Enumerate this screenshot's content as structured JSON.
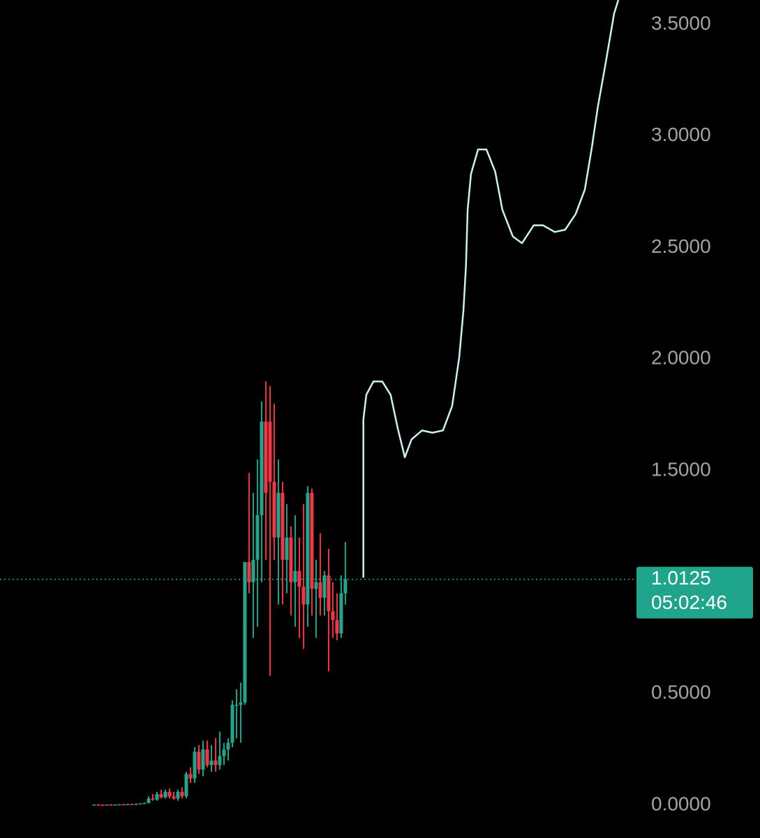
{
  "chart_data": {
    "type": "candlestick",
    "up_color": "#22a58c",
    "down_color": "#f23645",
    "line_color": "#c9f2f4",
    "price_line_color": "#1fa58b",
    "ylim": [
      -0.147,
      3.61
    ],
    "xlim": [
      -22.5,
      129.2
    ],
    "yticks": [
      {
        "value": 0,
        "label": "0.0000"
      },
      {
        "value": 0.5,
        "label": "0.5000"
      },
      {
        "value": 1.5,
        "label": "1.5000"
      },
      {
        "value": 2,
        "label": "2.0000"
      },
      {
        "value": 2.5,
        "label": "2.5000"
      },
      {
        "value": 3,
        "label": "3.0000"
      },
      {
        "value": 3.5,
        "label": "3.5000"
      }
    ],
    "open": [
      0.002,
      0.003,
      0.002,
      0.001,
      0.003,
      0.002,
      0.003,
      0.004,
      0.003,
      0.005,
      0.004,
      0.006,
      0.008,
      0.01,
      0.03,
      0.025,
      0.05,
      0.035,
      0.06,
      0.04,
      0.03,
      0.06,
      0.04,
      0.14,
      0.12,
      0.24,
      0.16,
      0.25,
      0.18,
      0.2,
      0.18,
      0.22,
      0.25,
      0.28,
      0.45,
      0.45,
      0.46,
      1.09,
      1.0,
      1.1,
      1.3,
      1.72,
      1.72,
      1.45,
      1.2,
      1.4,
      1.1,
      1.2,
      1.0,
      1.05,
      0.98,
      0.9,
      1.4,
      0.97,
      1.0,
      0.93,
      1.03,
      0.87,
      0.83,
      0.77,
      0.95
    ],
    "high": [
      0.004,
      0.005,
      0.004,
      0.004,
      0.005,
      0.004,
      0.005,
      0.006,
      0.006,
      0.007,
      0.008,
      0.009,
      0.012,
      0.04,
      0.05,
      0.06,
      0.07,
      0.07,
      0.075,
      0.06,
      0.07,
      0.08,
      0.15,
      0.17,
      0.26,
      0.27,
      0.29,
      0.29,
      0.27,
      0.3,
      0.33,
      0.28,
      0.3,
      0.47,
      0.52,
      0.55,
      1.09,
      1.49,
      1.4,
      1.55,
      1.81,
      1.9,
      1.88,
      1.8,
      1.55,
      1.45,
      1.35,
      1.25,
      1.3,
      1.2,
      1.35,
      1.43,
      1.42,
      1.1,
      1.22,
      1.05,
      1.15,
      1.0,
      0.95,
      1.03,
      1.18
    ],
    "low": [
      0.0,
      0.001,
      0.0,
      0.0,
      0.001,
      0.001,
      0.002,
      0.002,
      0.002,
      0.003,
      0.003,
      0.004,
      0.006,
      0.008,
      0.02,
      0.02,
      0.03,
      0.03,
      0.03,
      0.025,
      0.02,
      0.03,
      0.03,
      0.1,
      0.1,
      0.14,
      0.13,
      0.17,
      0.15,
      0.15,
      0.16,
      0.18,
      0.2,
      0.26,
      0.3,
      0.28,
      0.45,
      0.95,
      0.75,
      0.8,
      1.0,
      1.1,
      0.58,
      1.1,
      0.9,
      0.9,
      0.95,
      0.85,
      0.8,
      0.75,
      0.7,
      0.8,
      0.85,
      0.75,
      0.85,
      0.85,
      0.6,
      0.75,
      0.74,
      0.75,
      0.9
    ],
    "close": [
      0.003,
      0.002,
      0.001,
      0.003,
      0.002,
      0.003,
      0.004,
      0.003,
      0.005,
      0.004,
      0.006,
      0.008,
      0.01,
      0.03,
      0.025,
      0.05,
      0.035,
      0.06,
      0.04,
      0.03,
      0.06,
      0.04,
      0.14,
      0.12,
      0.24,
      0.16,
      0.25,
      0.18,
      0.2,
      0.18,
      0.22,
      0.25,
      0.28,
      0.45,
      0.45,
      0.46,
      1.09,
      1.0,
      1.1,
      1.3,
      1.72,
      1.4,
      1.45,
      1.2,
      1.4,
      1.1,
      1.2,
      1.0,
      1.05,
      0.98,
      0.9,
      1.4,
      0.97,
      1.0,
      0.93,
      1.03,
      0.87,
      0.83,
      0.77,
      0.95,
      1.0125
    ],
    "drawing": {
      "x": [
        64.3,
        64.3,
        65,
        66.7,
        68.8,
        70.8,
        72.5,
        74.2,
        75.8,
        78.3,
        80.8,
        83.3,
        85.5,
        87.2,
        88.2,
        88.8,
        89.2,
        90,
        91.7,
        93.7,
        95.8,
        97.5,
        100,
        102.2,
        105,
        107.2,
        110,
        112.5,
        115,
        117.2,
        118.8,
        120.3,
        122.2,
        124.2,
        125.2
      ],
      "values": [
        1.02,
        1.73,
        1.84,
        1.9,
        1.9,
        1.84,
        1.69,
        1.56,
        1.64,
        1.68,
        1.67,
        1.68,
        1.79,
        2.01,
        2.22,
        2.42,
        2.67,
        2.83,
        2.94,
        2.94,
        2.84,
        2.67,
        2.55,
        2.52,
        2.6,
        2.6,
        2.57,
        2.58,
        2.65,
        2.76,
        2.94,
        3.13,
        3.33,
        3.55,
        3.61
      ]
    },
    "last_price": 1.0125,
    "countdown": "05:02:46"
  }
}
